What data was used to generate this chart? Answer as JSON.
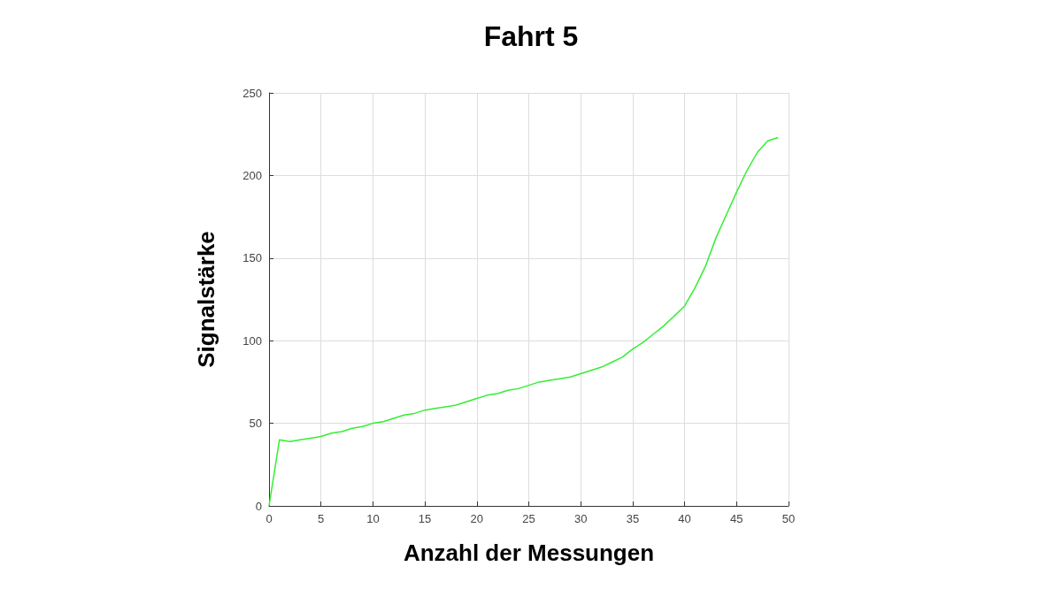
{
  "chart_data": {
    "type": "line",
    "title": "Fahrt 5",
    "xlabel": "Anzahl der Messungen",
    "ylabel": "Signalstärke",
    "x": [
      0,
      1,
      2,
      3,
      4,
      5,
      6,
      7,
      8,
      9,
      10,
      11,
      12,
      13,
      14,
      15,
      16,
      17,
      18,
      19,
      20,
      21,
      22,
      23,
      24,
      25,
      26,
      27,
      28,
      29,
      30,
      31,
      32,
      33,
      34,
      35,
      36,
      37,
      38,
      39,
      40,
      41,
      42,
      43,
      44,
      45,
      46,
      47,
      48,
      49
    ],
    "series": [
      {
        "color": "#33ee33",
        "values": [
          0,
          40,
          39,
          40,
          41,
          42,
          44,
          45,
          47,
          48,
          50,
          51,
          53,
          55,
          56,
          58,
          59,
          60,
          61,
          63,
          65,
          67,
          68,
          70,
          71,
          73,
          75,
          76,
          77,
          78,
          80,
          82,
          84,
          87,
          90,
          95,
          99,
          104,
          109,
          115,
          121,
          132,
          145,
          162,
          176,
          190,
          203,
          214,
          221,
          223
        ]
      }
    ],
    "xlim": [
      0,
      50
    ],
    "xticks": [
      0,
      5,
      10,
      15,
      20,
      25,
      30,
      35,
      40,
      45,
      50
    ],
    "ylim": [
      0,
      250
    ],
    "yticks": [
      0,
      50,
      100,
      150,
      200,
      250
    ],
    "grid": true,
    "marker": "none",
    "line_style": "solid"
  }
}
